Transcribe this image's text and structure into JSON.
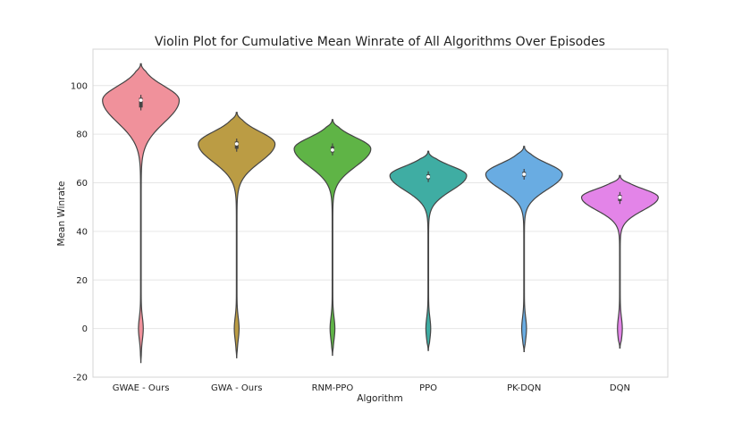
{
  "chart_data": {
    "type": "violin",
    "title": "Violin Plot for Cumulative Mean Winrate of All Algorithms Over Episodes",
    "xlabel": "Algorithm",
    "ylabel": "Mean Winrate",
    "ylim": [
      -20,
      115
    ],
    "yticks": [
      -20,
      0,
      20,
      40,
      60,
      80,
      100
    ],
    "grid": true,
    "categories": [
      "GWAE - Ours",
      "GWA - Ours",
      "RNM-PPO",
      "PPO",
      "PK-DQN",
      "DQN"
    ],
    "series": [
      {
        "category": "GWAE - Ours",
        "color": "#f0919b",
        "min": -14,
        "max": 109,
        "mode": 94,
        "median": 94,
        "q1": 91,
        "q3": 95
      },
      {
        "category": "GWA - Ours",
        "color": "#bb9c44",
        "min": -12,
        "max": 89,
        "mode": 76,
        "median": 76,
        "q1": 74,
        "q3": 77
      },
      {
        "category": "RNM-PPO",
        "color": "#5fb446",
        "min": -11,
        "max": 86,
        "mode": 74,
        "median": 73.5,
        "q1": 72.5,
        "q3": 75
      },
      {
        "category": "PPO",
        "color": "#3fada3",
        "min": -9,
        "max": 73,
        "mode": 63,
        "median": 62.5,
        "q1": 61.5,
        "q3": 63.5
      },
      {
        "category": "PK-DQN",
        "color": "#69ace2",
        "min": -9.5,
        "max": 75,
        "mode": 63.5,
        "median": 63.5,
        "q1": 62.5,
        "q3": 64.5
      },
      {
        "category": "DQN",
        "color": "#e384e8",
        "min": -8,
        "max": 63,
        "mode": 54,
        "median": 54,
        "q1": 52.5,
        "q3": 55
      }
    ]
  }
}
